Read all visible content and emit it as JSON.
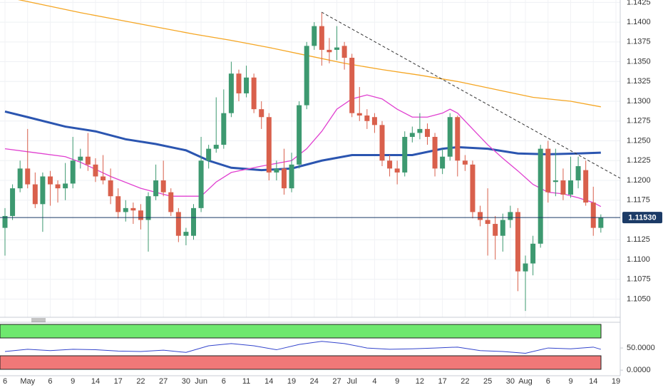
{
  "chart_data": [
    {
      "type": "candlestick",
      "categories": [
        "6",
        null,
        null,
        "May",
        null,
        null,
        "6",
        null,
        null,
        "9",
        null,
        null,
        "14",
        null,
        null,
        "17",
        null,
        null,
        "22",
        null,
        null,
        "27",
        null,
        null,
        "30",
        null,
        "Jun",
        null,
        null,
        "6",
        null,
        null,
        "11",
        null,
        null,
        "14",
        null,
        null,
        "19",
        null,
        null,
        "24",
        null,
        null,
        "27",
        null,
        "Jul",
        null,
        null,
        "4",
        null,
        null,
        "9",
        null,
        null,
        "12",
        null,
        null,
        "17",
        null,
        null,
        "22",
        null,
        null,
        "25",
        null,
        null,
        "30",
        null,
        "Aug",
        null,
        null,
        "6",
        null,
        null,
        "9",
        null,
        null,
        "14",
        null,
        null,
        "19"
      ],
      "open": [
        1.114,
        1.1155,
        1.119,
        1.1215,
        1.1195,
        1.117,
        1.1205,
        1.1195,
        1.119,
        1.1196,
        1.1225,
        1.123,
        1.122,
        1.1205,
        1.12,
        1.118,
        1.116,
        1.1165,
        1.1162,
        1.115,
        1.118,
        1.12,
        1.1185,
        1.116,
        1.113,
        1.113,
        1.1165,
        1.1225,
        1.124,
        1.1245,
        1.1285,
        1.1335,
        1.131,
        1.133,
        1.129,
        1.128,
        1.121,
        1.1215,
        1.119,
        1.122,
        1.1295,
        1.137,
        1.1395,
        1.1365,
        1.1365,
        1.137,
        1.1355,
        1.1285,
        1.1282,
        1.128,
        1.127,
        1.1225,
        1.1215,
        1.121,
        1.1255,
        1.126,
        1.1265,
        1.1255,
        1.1215,
        1.123,
        1.128,
        1.1225,
        1.122,
        1.116,
        1.115,
        1.1145,
        1.113,
        1.115,
        1.116,
        1.1085,
        1.1095,
        1.112,
        1.124,
        1.1198,
        1.12,
        1.1182,
        1.12,
        1.1213,
        1.1172,
        1.114,
        null,
        null
      ],
      "high": [
        1.1165,
        1.1195,
        1.1225,
        1.1265,
        1.121,
        1.121,
        1.1212,
        1.12,
        1.1222,
        1.1255,
        1.124,
        1.126,
        1.1228,
        1.1232,
        1.1215,
        1.119,
        1.1175,
        1.1172,
        1.117,
        1.1185,
        1.122,
        1.1225,
        1.119,
        1.1165,
        1.114,
        1.117,
        1.1255,
        1.1245,
        1.1305,
        1.1315,
        1.135,
        1.134,
        1.1345,
        1.1335,
        1.13,
        1.1285,
        1.1225,
        1.124,
        1.1235,
        1.13,
        1.1375,
        1.14,
        1.1412,
        1.138,
        1.1395,
        1.1375,
        1.136,
        1.1318,
        1.129,
        1.1285,
        1.1275,
        1.1232,
        1.1225,
        1.1262,
        1.1268,
        1.1285,
        1.1272,
        1.126,
        1.124,
        1.1285,
        1.1282,
        1.1232,
        1.1225,
        1.1168,
        1.119,
        1.1155,
        1.1158,
        1.1168,
        1.1165,
        1.1105,
        1.113,
        1.1245,
        1.125,
        1.124,
        1.1215,
        1.123,
        1.123,
        1.1225,
        1.1192,
        1.1157,
        null,
        null
      ],
      "low": [
        1.1105,
        1.115,
        1.1185,
        1.119,
        1.1165,
        1.1135,
        1.1168,
        1.1172,
        1.1175,
        1.119,
        1.1215,
        1.1212,
        1.1198,
        1.1195,
        1.117,
        1.1152,
        1.1148,
        1.1145,
        1.1138,
        1.111,
        1.1175,
        1.118,
        1.1155,
        1.1122,
        1.1118,
        1.1125,
        1.116,
        1.1215,
        1.1235,
        1.124,
        1.128,
        1.13,
        1.1305,
        1.1285,
        1.1265,
        1.12,
        1.12,
        1.1182,
        1.1185,
        1.1215,
        1.129,
        1.1365,
        1.1345,
        1.1348,
        1.1352,
        1.134,
        1.128,
        1.1275,
        1.1265,
        1.126,
        1.1218,
        1.1205,
        1.1195,
        1.1205,
        1.1248,
        1.1252,
        1.1245,
        1.1205,
        1.1208,
        1.1225,
        1.1205,
        1.1212,
        1.1152,
        1.1142,
        1.1105,
        1.11,
        1.111,
        1.114,
        1.106,
        1.1035,
        1.108,
        1.1115,
        1.1172,
        1.118,
        1.1175,
        1.1178,
        1.119,
        1.1168,
        1.113,
        1.1134,
        null,
        null
      ],
      "close": [
        1.1155,
        1.119,
        1.1215,
        1.1195,
        1.117,
        1.1205,
        1.1195,
        1.119,
        1.1196,
        1.1225,
        1.123,
        1.122,
        1.1205,
        1.12,
        1.118,
        1.116,
        1.1165,
        1.1162,
        1.115,
        1.118,
        1.12,
        1.1185,
        1.116,
        1.113,
        1.1135,
        1.1165,
        1.1225,
        1.124,
        1.1245,
        1.1285,
        1.1335,
        1.131,
        1.133,
        1.129,
        1.128,
        1.121,
        1.1215,
        1.119,
        1.122,
        1.1295,
        1.137,
        1.1395,
        1.1365,
        1.1362,
        1.1368,
        1.1355,
        1.1285,
        1.1282,
        1.1275,
        1.127,
        1.1225,
        1.1215,
        1.121,
        1.1255,
        1.126,
        1.1265,
        1.1255,
        1.1215,
        1.123,
        1.128,
        1.1225,
        1.122,
        1.116,
        1.115,
        1.1145,
        1.113,
        1.115,
        1.116,
        1.1085,
        1.1095,
        1.112,
        1.124,
        1.1185,
        1.12,
        1.1182,
        1.12,
        1.1218,
        1.1172,
        1.114,
        1.1153,
        null,
        null
      ],
      "up_color": "#3d9970",
      "down_color": "#d9604c",
      "overlays": [
        {
          "color": "#f5a623",
          "x": [
            0,
            5,
            10,
            15,
            20,
            25,
            30,
            35,
            40,
            45,
            50,
            55,
            60,
            65,
            70,
            75,
            79
          ],
          "values": [
            1.1432,
            1.1422,
            1.1412,
            1.1403,
            1.1394,
            1.1385,
            1.1377,
            1.1368,
            1.1358,
            1.1348,
            1.134,
            1.1333,
            1.1325,
            1.1315,
            1.1305,
            1.13,
            1.1293
          ]
        },
        {
          "color": "#2b55b0",
          "x": [
            0,
            3,
            8,
            12,
            16,
            20,
            24,
            27,
            30,
            34,
            38,
            42,
            46,
            50,
            54,
            58,
            60,
            64,
            68,
            72,
            76,
            79
          ],
          "values": [
            1.1287,
            1.128,
            1.1268,
            1.1262,
            1.1252,
            1.1246,
            1.1238,
            1.1225,
            1.1216,
            1.1213,
            1.1215,
            1.1225,
            1.1232,
            1.1232,
            1.1232,
            1.124,
            1.1242,
            1.124,
            1.1234,
            1.1233,
            1.1234,
            1.1235
          ]
        },
        {
          "color": "#e040d0",
          "x": [
            0,
            4,
            8,
            10,
            14,
            18,
            22,
            26,
            28,
            30,
            34,
            38,
            40,
            42,
            44,
            46,
            48,
            50,
            52,
            54,
            56,
            58,
            59,
            60,
            62,
            64,
            66,
            68,
            70,
            72,
            74,
            76,
            78,
            79
          ],
          "values": [
            1.124,
            1.1235,
            1.123,
            1.1223,
            1.1205,
            1.119,
            1.118,
            1.118,
            1.1198,
            1.121,
            1.1218,
            1.1225,
            1.124,
            1.1262,
            1.129,
            1.1303,
            1.1308,
            1.1303,
            1.129,
            1.128,
            1.128,
            1.1285,
            1.129,
            1.1285,
            1.1265,
            1.1245,
            1.1228,
            1.1212,
            1.1195,
            1.1185,
            1.1183,
            1.1178,
            1.1172,
            1.1167
          ]
        }
      ],
      "last_price": {
        "value": 1.1153,
        "label": "1.11530"
      },
      "ylim": [
        1.1027,
        1.1428
      ],
      "yticks": [
        1.1425,
        {
          "value": 1.14,
          "label": "1.1400"
        },
        1.1375,
        {
          "value": 1.135,
          "label": "1.1350"
        },
        1.1325,
        {
          "value": 1.13,
          "label": "1.1300"
        },
        1.1275,
        {
          "value": 1.125,
          "label": "1.1250"
        },
        1.1225,
        {
          "value": 1.12,
          "label": "1.1200"
        },
        1.1175,
        1.1125,
        {
          "value": 1.11,
          "label": "1.1100"
        },
        1.1075,
        {
          "value": 1.105,
          "label": "1.1050"
        }
      ],
      "grid": true
    },
    {
      "type": "line",
      "series": [
        {
          "color": "#3344cc",
          "x": [
            0,
            3,
            6,
            9,
            12,
            15,
            18,
            21,
            24,
            27,
            30,
            33,
            36,
            39,
            42,
            45,
            48,
            51,
            54,
            57,
            60,
            63,
            66,
            69,
            72,
            75,
            78,
            79
          ],
          "values": [
            42,
            47,
            44,
            47,
            46,
            43,
            42,
            45,
            40,
            55,
            60,
            55,
            46,
            58,
            65,
            60,
            50,
            47,
            48,
            50,
            52,
            44,
            42,
            38,
            50,
            48,
            52,
            47
          ]
        }
      ],
      "ylim": [
        -11,
        108
      ],
      "yticks": [
        {
          "value": 0,
          "label": "0.0000"
        },
        {
          "value": 50,
          "label": "50.0000"
        }
      ],
      "grid": false
    }
  ]
}
